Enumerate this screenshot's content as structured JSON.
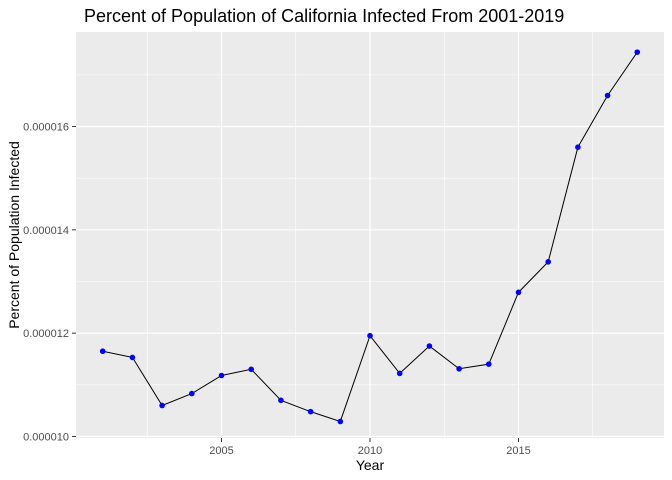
{
  "chart_data": {
    "type": "line",
    "title": "Percent of Population of California Infected From 2001-2019",
    "xlabel": "Year",
    "ylabel": "Percent of Population Infected",
    "x": [
      2001,
      2002,
      2003,
      2004,
      2005,
      2006,
      2007,
      2008,
      2009,
      2010,
      2011,
      2012,
      2013,
      2014,
      2015,
      2016,
      2017,
      2018,
      2019
    ],
    "series": [
      {
        "values": [
          1.165e-05,
          1.153e-05,
          1.06e-05,
          1.083e-05,
          1.118e-05,
          1.13e-05,
          1.07e-05,
          1.048e-05,
          1.029e-05,
          1.195e-05,
          1.122e-05,
          1.175e-05,
          1.131e-05,
          1.14e-05,
          1.279e-05,
          1.338e-05,
          1.56e-05,
          1.66e-05,
          1.744e-05
        ],
        "line_color": "#000000",
        "point_color": "#0000ff"
      }
    ],
    "xlim": [
      2000.1,
      2019.9
    ],
    "ylim": [
      9.97e-06,
      1.783e-05
    ],
    "xticks": [
      {
        "value": 2005,
        "label": "2005"
      },
      {
        "value": 2010,
        "label": "2010"
      },
      {
        "value": 2015,
        "label": "2015"
      }
    ],
    "yticks": [
      {
        "value": 1e-05,
        "label": "0.000010"
      },
      {
        "value": 1.2e-05,
        "label": "0.000012"
      },
      {
        "value": 1.4e-05,
        "label": "0.000014"
      },
      {
        "value": 1.6e-05,
        "label": "0.000016"
      }
    ],
    "minor_x": [
      2002.5,
      2007.5,
      2012.5,
      2017.5
    ],
    "minor_y": [
      1.1e-05,
      1.3e-05,
      1.5e-05,
      1.7e-05
    ],
    "grid": true,
    "legend": "none",
    "panel_background": "#ebebeb",
    "grid_color": "#ffffff"
  }
}
